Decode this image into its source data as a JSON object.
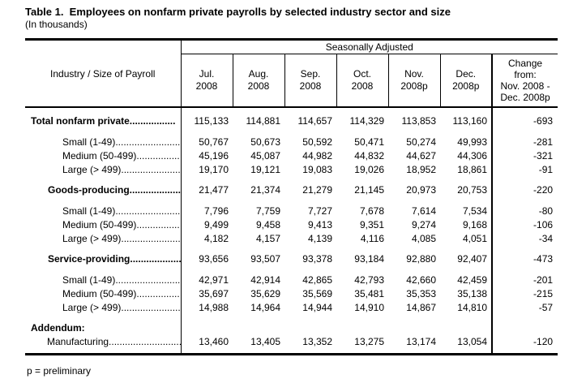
{
  "title": "Table 1.  Employees on nonfarm private payrolls by selected industry sector and size",
  "subtitle": "(In thousands)",
  "table": {
    "banner": "Seasonally Adjusted",
    "stub_header": "Industry / Size of Payroll",
    "months": [
      [
        "Jul.",
        "2008"
      ],
      [
        "Aug.",
        "2008"
      ],
      [
        "Sep.",
        "2008"
      ],
      [
        "Oct.",
        "2008"
      ],
      [
        "Nov.",
        "2008p"
      ],
      [
        "Dec.",
        "2008p"
      ]
    ],
    "change_header": [
      "Change",
      "from:",
      "Nov. 2008 -",
      "Dec. 2008p"
    ],
    "rows": [
      {
        "label": "Total nonfarm private.................",
        "values": [
          "115,133",
          "114,881",
          "114,657",
          "114,329",
          "113,853",
          "113,160"
        ],
        "change": "-693"
      },
      {
        "label": "Small (1-49)........................",
        "values": [
          "50,767",
          "50,673",
          "50,592",
          "50,471",
          "50,274",
          "49,993"
        ],
        "change": "-281"
      },
      {
        "label": "Medium (50-499)................",
        "values": [
          "45,196",
          "45,087",
          "44,982",
          "44,832",
          "44,627",
          "44,306"
        ],
        "change": "-321"
      },
      {
        "label": "Large (> 499)......................",
        "values": [
          "19,170",
          "19,121",
          "19,083",
          "19,026",
          "18,952",
          "18,861"
        ],
        "change": "-91"
      },
      {
        "label": "Goods-producing....................",
        "values": [
          "21,477",
          "21,374",
          "21,279",
          "21,145",
          "20,973",
          "20,753"
        ],
        "change": "-220"
      },
      {
        "label": "Small (1-49)........................",
        "values": [
          "7,796",
          "7,759",
          "7,727",
          "7,678",
          "7,614",
          "7,534"
        ],
        "change": "-80"
      },
      {
        "label": "Medium (50-499)................",
        "values": [
          "9,499",
          "9,458",
          "9,413",
          "9,351",
          "9,274",
          "9,168"
        ],
        "change": "-106"
      },
      {
        "label": "Large (> 499)......................",
        "values": [
          "4,182",
          "4,157",
          "4,139",
          "4,116",
          "4,085",
          "4,051"
        ],
        "change": "-34"
      },
      {
        "label": "Service-providing...................",
        "values": [
          "93,656",
          "93,507",
          "93,378",
          "93,184",
          "92,880",
          "92,407"
        ],
        "change": "-473"
      },
      {
        "label": "Small (1-49)........................",
        "values": [
          "42,971",
          "42,914",
          "42,865",
          "42,793",
          "42,660",
          "42,459"
        ],
        "change": "-201"
      },
      {
        "label": "Medium (50-499)................",
        "values": [
          "35,697",
          "35,629",
          "35,569",
          "35,481",
          "35,353",
          "35,138"
        ],
        "change": "-215"
      },
      {
        "label": "Large (> 499)......................",
        "values": [
          "14,988",
          "14,964",
          "14,944",
          "14,910",
          "14,867",
          "14,810"
        ],
        "change": "-57"
      },
      {
        "label": "Addendum:"
      },
      {
        "label": "Manufacturing...........................",
        "values": [
          "13,460",
          "13,405",
          "13,352",
          "13,275",
          "13,174",
          "13,054"
        ],
        "change": "-120"
      }
    ]
  },
  "footnote": "p = preliminary"
}
